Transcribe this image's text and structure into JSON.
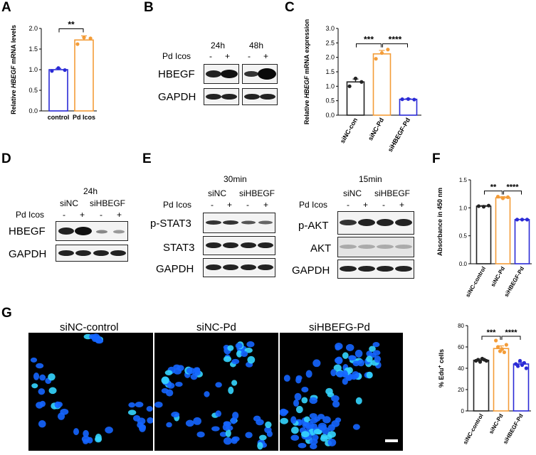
{
  "panels": {
    "A": "A",
    "B": "B",
    "C": "C",
    "D": "D",
    "E": "E",
    "F": "F",
    "G": "G"
  },
  "signif": {
    "two": "**",
    "three": "***",
    "four": "****"
  },
  "treatment_label": "Pd Icos",
  "signs": {
    "minus": "-",
    "plus": "+"
  },
  "panel_B": {
    "time1": "24h",
    "time2": "48h",
    "row1": "HBEGF",
    "row2": "GAPDH"
  },
  "panel_D": {
    "time": "24h",
    "group1": "siNC",
    "group2": "siHBEGF",
    "row1": "HBEGF",
    "row2": "GAPDH"
  },
  "panel_E": {
    "left_time": "30min",
    "right_time": "15min",
    "group1": "siNC",
    "group2": "siHBEGF",
    "left_rows": [
      "p-STAT3",
      "STAT3",
      "GAPDH"
    ],
    "right_rows": [
      "p-AKT",
      "AKT",
      "GAPDH"
    ]
  },
  "panel_G": {
    "img1": "siNC-control",
    "img2": "siNC-Pd",
    "img3": "siHBEFG-Pd"
  },
  "colors": {
    "black": "#222222",
    "orange": "#f39c38",
    "blue": "#2a2ad6",
    "nuclei": "#1565ff",
    "nuclei_bright": "#35d6ff"
  },
  "chart_data": [
    {
      "id": "A",
      "type": "bar",
      "categories": [
        "control",
        "Pd Icos"
      ],
      "values": [
        1.0,
        1.72
      ],
      "errors": [
        0.03,
        0.1
      ],
      "points": [
        [
          0.97,
          1.04,
          0.99
        ],
        [
          1.62,
          1.78,
          1.76
        ]
      ],
      "colors": [
        "#2a2ad6",
        "#f39c38"
      ],
      "ylabel_pre": "Relative ",
      "ylabel_gene": "HBEGF",
      "ylabel_post": " mRNA levels",
      "ylim": [
        0,
        2.0
      ],
      "yticks": [
        "0.0",
        "0.5",
        "1.0",
        "1.5",
        "2.0"
      ],
      "sig": "**"
    },
    {
      "id": "C",
      "type": "bar",
      "categories": [
        "siNC-con",
        "siNC-Pd",
        "siHBEGF-Pd"
      ],
      "values": [
        1.15,
        2.12,
        0.55
      ],
      "errors": [
        0.1,
        0.12,
        0.02
      ],
      "points": [
        [
          1.0,
          1.27,
          1.15
        ],
        [
          1.95,
          2.15,
          2.27
        ],
        [
          0.55,
          0.56,
          0.54
        ]
      ],
      "colors": [
        "#222222",
        "#f39c38",
        "#2a2ad6"
      ],
      "ylabel_pre": "Relative ",
      "ylabel_gene": "HBEGF",
      "ylabel_post": " mRNA expression",
      "ylim": [
        0,
        3.0
      ],
      "yticks": [
        "0.0",
        "0.5",
        "1.0",
        "1.5",
        "2.0",
        "2.5",
        "3.0"
      ],
      "sigs": [
        "***",
        "****"
      ]
    },
    {
      "id": "F",
      "type": "bar",
      "categories": [
        "siNC-control",
        "siNC-Pd",
        "siHBEGF-Pd"
      ],
      "values": [
        1.03,
        1.18,
        0.79
      ],
      "errors": [
        0.01,
        0.02,
        0.005
      ],
      "points": [
        [
          1.03,
          1.02,
          1.04
        ],
        [
          1.2,
          1.17,
          1.19
        ],
        [
          0.79,
          0.79,
          0.79
        ]
      ],
      "colors": [
        "#222222",
        "#f39c38",
        "#2a2ad6"
      ],
      "ylabel": "Absorbance in 450 nm",
      "ylim": [
        0,
        1.5
      ],
      "yticks": [
        "0.0",
        "0.5",
        "1.0",
        "1.5"
      ],
      "sigs": [
        "**",
        "****"
      ]
    },
    {
      "id": "G",
      "type": "bar",
      "categories": [
        "siNC-control",
        "siNC-Pd",
        "siHBEGF-Pd"
      ],
      "values": [
        47.5,
        58.5,
        44.0
      ],
      "errors": [
        1.2,
        2.5,
        1.5
      ],
      "points": [
        [
          47,
          48,
          46,
          49,
          48,
          47
        ],
        [
          66,
          60,
          56,
          58,
          55,
          62
        ],
        [
          44,
          42,
          47,
          43,
          45,
          40
        ]
      ],
      "colors": [
        "#222222",
        "#f39c38",
        "#2a2ad6"
      ],
      "ylabel_pre": "% Edu",
      "ylabel_sup": "+",
      "ylabel_post": " cells",
      "ylim": [
        0,
        80
      ],
      "yticks": [
        "0",
        "20",
        "40",
        "60",
        "80"
      ],
      "sigs": [
        "***",
        "****"
      ]
    }
  ]
}
